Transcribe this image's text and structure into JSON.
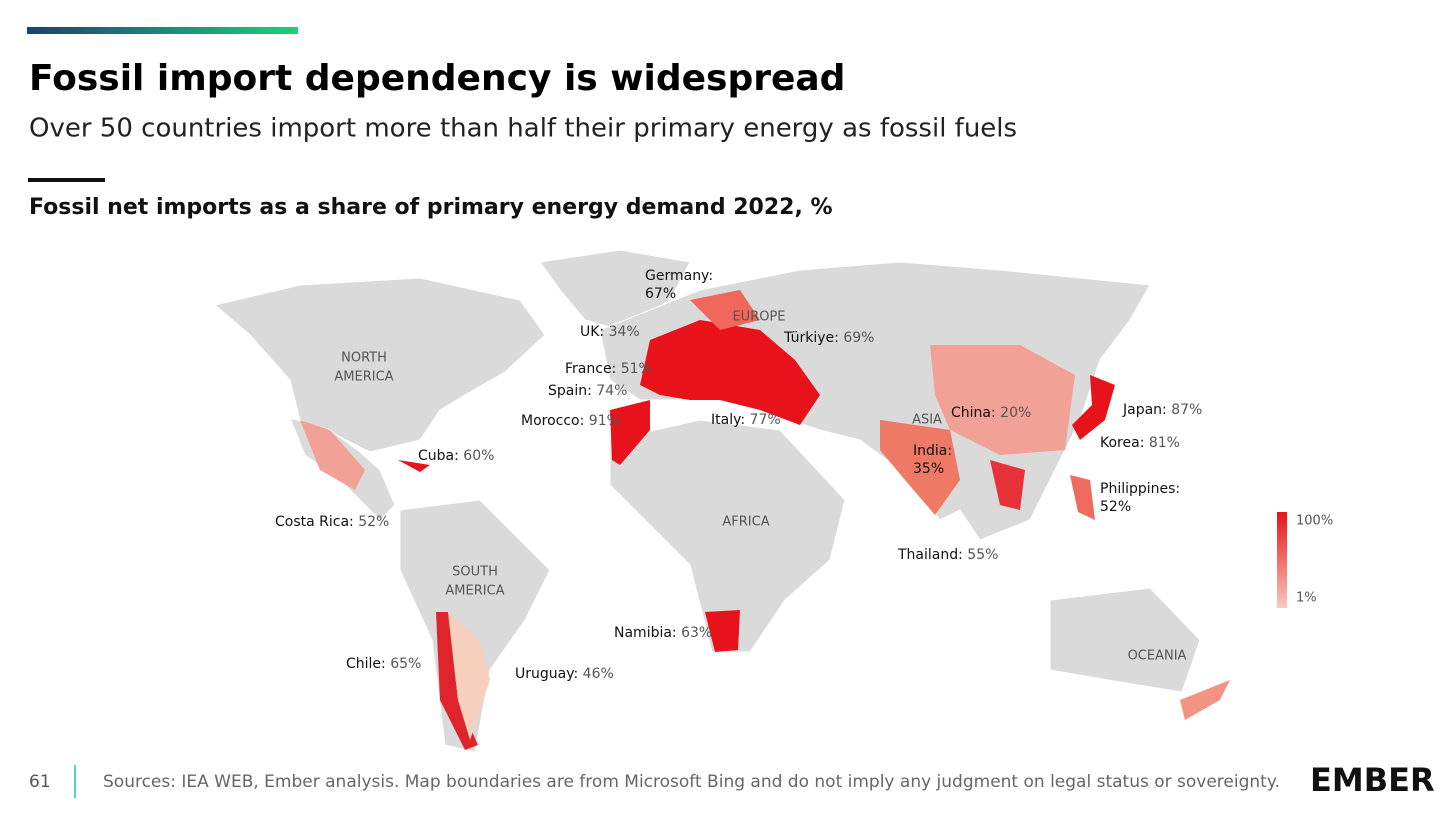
{
  "header": {
    "title": "Fossil import dependency is widespread",
    "subtitle": "Over 50 countries import more than half their primary energy as fossil fuels"
  },
  "map": {
    "caption": "Fossil net imports as a share of primary energy demand 2022, %",
    "regions": [
      [
        "NORTH",
        "AMERICA"
      ],
      [
        "EUROPE"
      ],
      [
        "ASIA"
      ],
      [
        "AFRICA"
      ],
      [
        "SOUTH",
        "AMERICA"
      ],
      [
        "OCEANIA"
      ]
    ],
    "annotations": [
      {
        "name": "Germany:",
        "value": "67%"
      },
      {
        "name": "UK:",
        "value": "34%"
      },
      {
        "name": "Türkiye:",
        "value": "69%"
      },
      {
        "name": "France:",
        "value": "51%"
      },
      {
        "name": "Spain:",
        "value": "74%"
      },
      {
        "name": "Morocco:",
        "value": "91%"
      },
      {
        "name": "Italy:",
        "value": "77%"
      },
      {
        "name": "China:",
        "value": "20%"
      },
      {
        "name": "Japan:",
        "value": "87%"
      },
      {
        "name": "Korea:",
        "value": "81%"
      },
      {
        "name": "India:",
        "value": "35%"
      },
      {
        "name": "Cuba:",
        "value": "60%"
      },
      {
        "name": "Philippines:",
        "value": "52%"
      },
      {
        "name": "Costa Rica:",
        "value": "52%"
      },
      {
        "name": "Thailand:",
        "value": "55%"
      },
      {
        "name": "Namibia:",
        "value": "63%"
      },
      {
        "name": "Chile:",
        "value": "65%"
      },
      {
        "name": "Uruguay:",
        "value": "46%"
      }
    ],
    "legend": {
      "max": "100%",
      "min": "1%"
    }
  },
  "footer": {
    "page": "61",
    "source": "Sources: IEA WEB, Ember analysis. Map boundaries are from Microsoft Bing and do not imply any judgment on legal status or sovereignty.",
    "logo": "EMBER"
  }
}
